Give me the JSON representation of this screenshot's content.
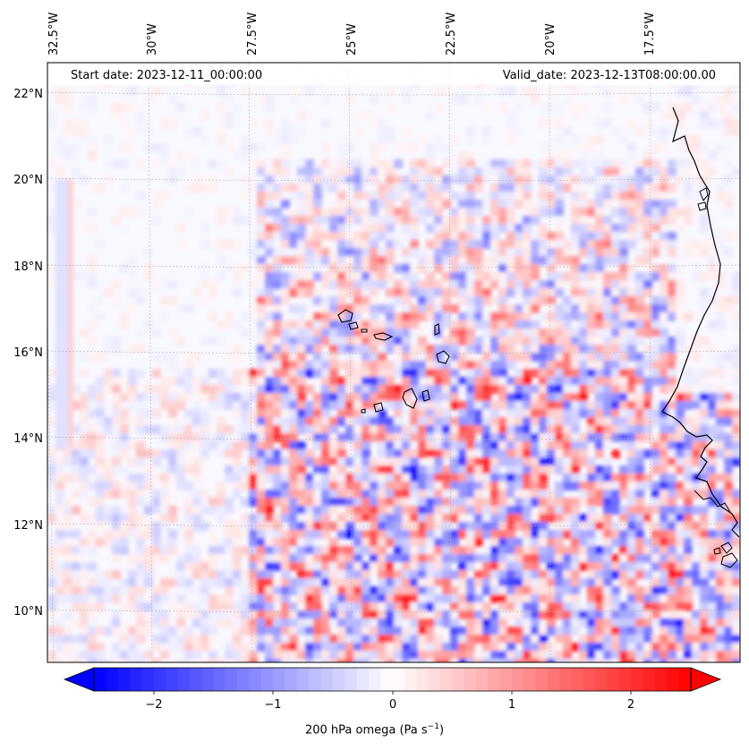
{
  "header": {
    "start_date": "Start date: 2023-12-11_00:00:00",
    "valid_date": "Valid_date: 2023-12-13T08:00:00.00"
  },
  "map": {
    "lon_labels": [
      "32.5°W",
      "30°W",
      "27.5°W",
      "25°W",
      "22.5°W",
      "20°W",
      "17.5°W"
    ],
    "lat_labels": [
      "22°N",
      "20°N",
      "18°N",
      "16°N",
      "14°N",
      "12°N",
      "10°N"
    ],
    "field": "200 hPa omega",
    "colormap": "bwr",
    "colors": {
      "negative": "#0000ff",
      "zero": "#ffffff",
      "positive": "#ff0000",
      "coast": "#000000",
      "grid": "#b0b0b0"
    }
  },
  "colorbar": {
    "ticks": [
      "−2",
      "−1",
      "0",
      "1",
      "2"
    ],
    "tick_values": [
      -2,
      -1,
      0,
      1,
      2
    ],
    "range": [
      -2.5,
      2.5
    ],
    "label_main": "200 hPa omega (Pa s",
    "label_exp": "−1",
    "label_end": ")"
  }
}
